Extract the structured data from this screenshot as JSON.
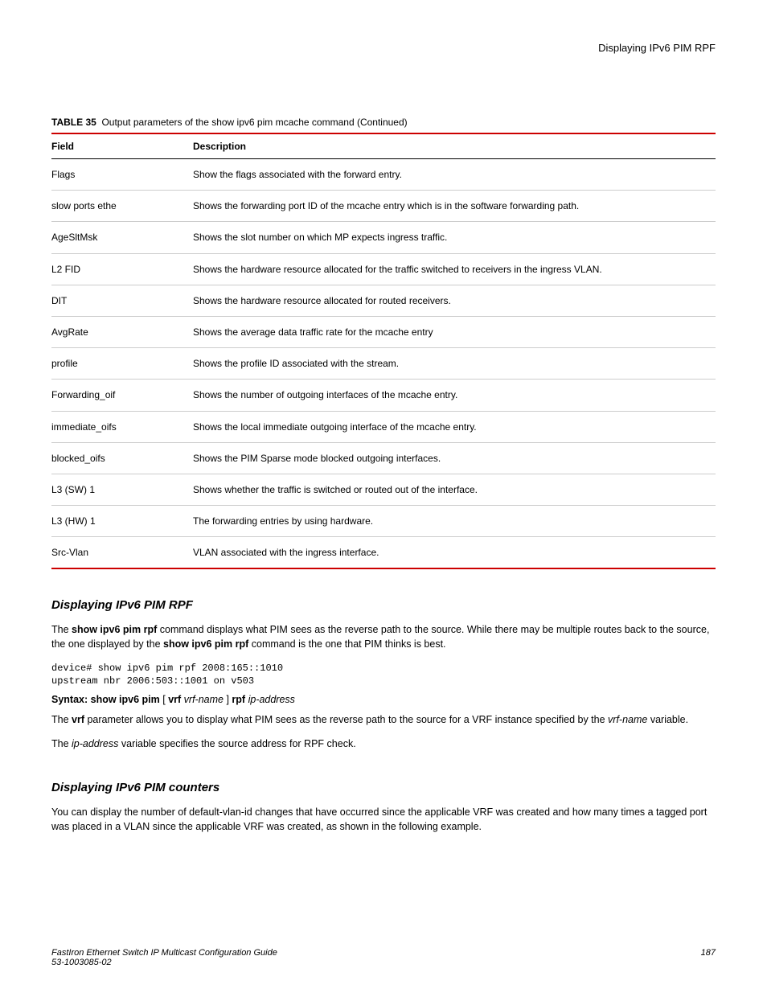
{
  "header": {
    "title": "Displaying IPv6 PIM RPF"
  },
  "table": {
    "caption_label": "TABLE 35",
    "caption_text": "Output parameters of the show ipv6 pim mcache command (Continued)",
    "header_field": "Field",
    "header_desc": "Description",
    "rows": [
      {
        "field": "Flags",
        "desc": "Show the flags associated with the forward entry."
      },
      {
        "field": "slow ports ethe",
        "desc": "Shows the forwarding port ID of the mcache entry which is in the software forwarding path."
      },
      {
        "field": "AgeSltMsk",
        "desc": "Shows the slot number on which MP expects ingress traffic."
      },
      {
        "field": "L2 FID",
        "desc": "Shows the hardware resource allocated for the traffic switched to receivers in the ingress VLAN."
      },
      {
        "field": "DIT",
        "desc": "Shows the hardware resource allocated for routed receivers."
      },
      {
        "field": "AvgRate",
        "desc": "Shows the average data traffic rate for the mcache entry"
      },
      {
        "field": "profile",
        "desc": "Shows the profile ID associated with the stream."
      },
      {
        "field": "Forwarding_oif",
        "desc": "Shows the number of outgoing interfaces of the mcache entry."
      },
      {
        "field": "immediate_oifs",
        "desc": "Shows the local immediate outgoing interface of the mcache entry."
      },
      {
        "field": "blocked_oifs",
        "desc": "Shows the PIM Sparse mode blocked outgoing interfaces."
      },
      {
        "field": "L3 (SW) 1",
        "desc": "Shows whether the traffic is switched or routed out of the interface."
      },
      {
        "field": "L3 (HW) 1",
        "desc": "The forwarding entries by using hardware."
      },
      {
        "field": "Src-Vlan",
        "desc": "VLAN associated with the ingress interface."
      }
    ]
  },
  "section1": {
    "heading": "Displaying IPv6 PIM RPF",
    "p1_a": "The ",
    "p1_b": "show ipv6 pim rpf",
    "p1_c": " command displays what PIM sees as the reverse path to the source. While there may be multiple routes back to the source, the one displayed by the ",
    "p1_d": "show ipv6 pim rpf",
    "p1_e": " command is the one that PIM thinks is best.",
    "code": "device# show ipv6 pim rpf 2008:165::1010\nupstream nbr 2006:503::1001 on v503",
    "syntax_a": "Syntax: show ipv6 pim",
    "syntax_b": " [ ",
    "syntax_c": "vrf",
    "syntax_d": " ",
    "syntax_e": "vrf-name",
    "syntax_f": " ] ",
    "syntax_g": "rpf",
    "syntax_h": " ",
    "syntax_i": "ip-address",
    "p2_a": "The ",
    "p2_b": "vrf",
    "p2_c": " parameter allows you to display what PIM sees as the reverse path to the source for a VRF instance specified by the ",
    "p2_d": "vrf-name",
    "p2_e": " variable.",
    "p3_a": "The ",
    "p3_b": "ip-address",
    "p3_c": " variable specifies the source address for RPF check."
  },
  "section2": {
    "heading": "Displaying IPv6 PIM counters",
    "p1": "You can display the number of default-vlan-id changes that have occurred since the applicable VRF was created and how many times a tagged port was placed in a VLAN since the applicable VRF was created, as shown in the following example."
  },
  "footer": {
    "doc_title": "FastIron Ethernet Switch IP Multicast Configuration Guide",
    "doc_id": "53-1003085-02",
    "page_num": "187"
  }
}
